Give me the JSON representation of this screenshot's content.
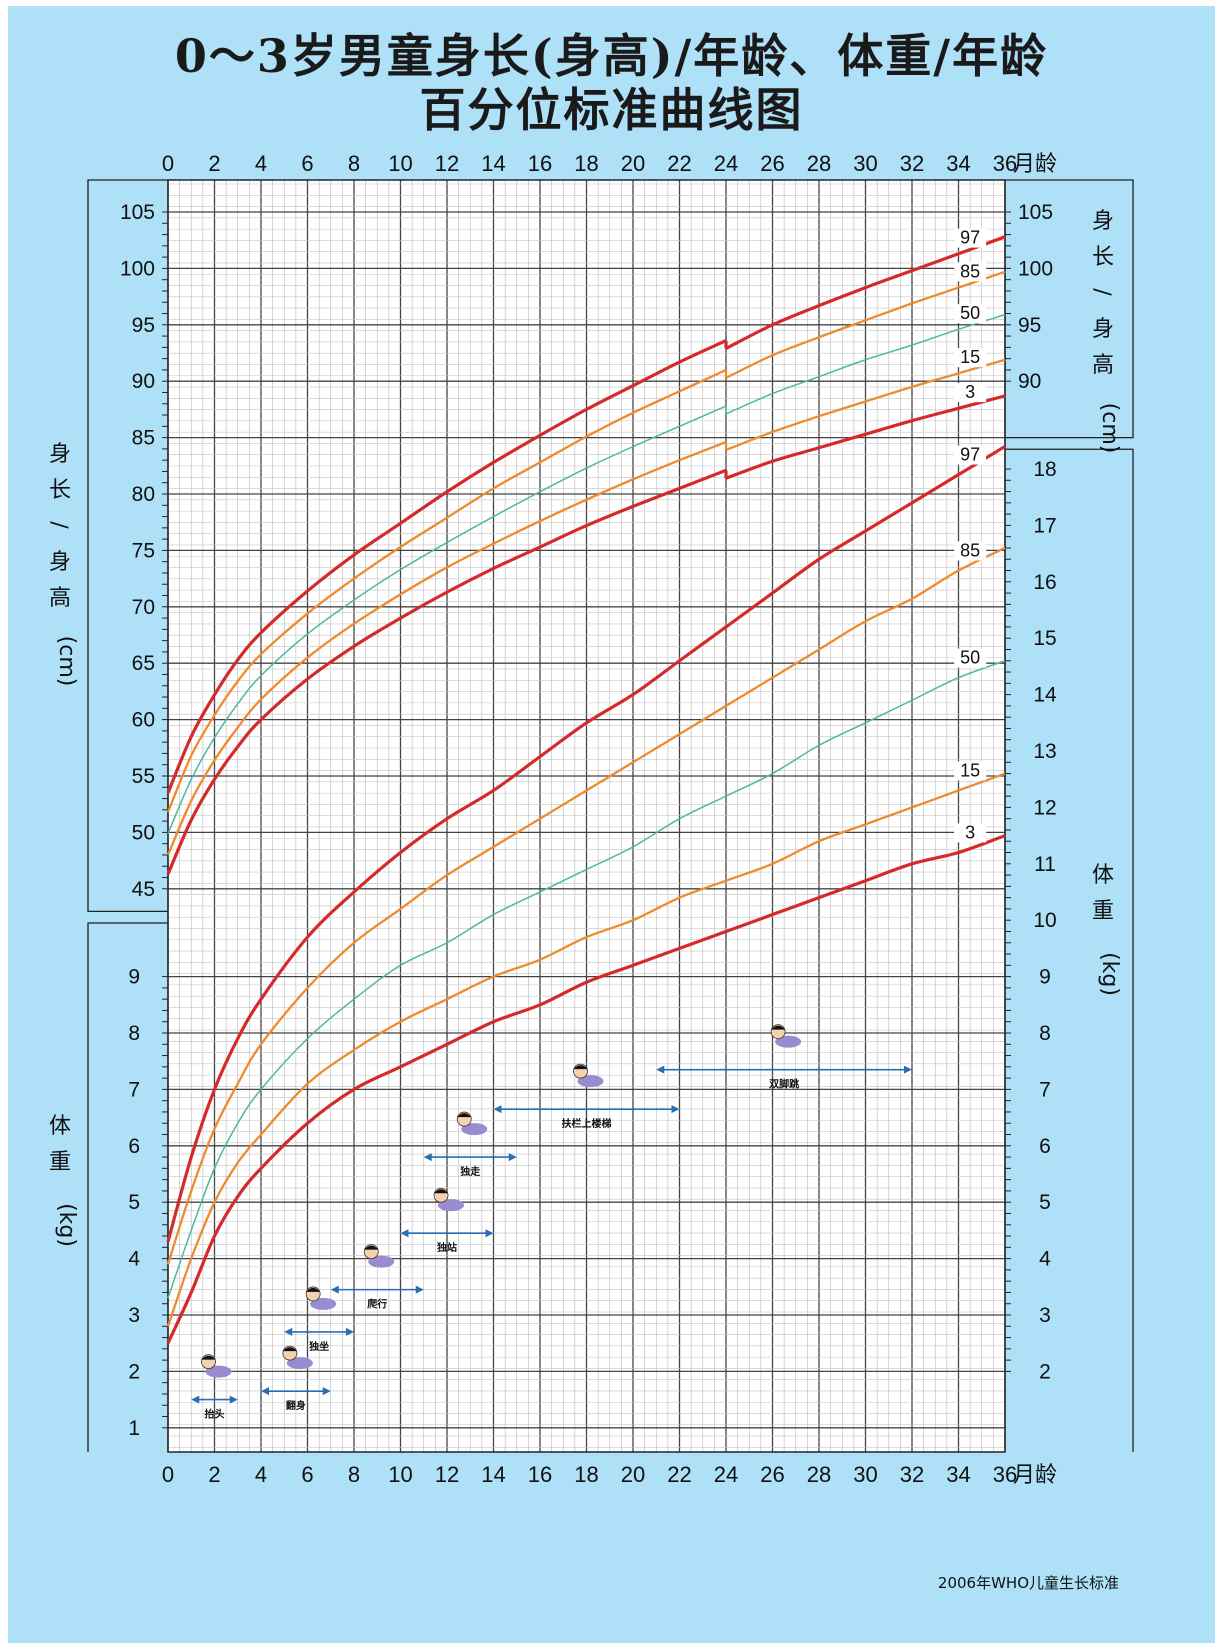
{
  "page": {
    "title_line1": "0～3岁男童身长(身高)/年龄、体重/年龄",
    "title_line2": "百分位标准曲线图",
    "source": "2006年WHO儿童生长标准"
  },
  "colors": {
    "background": "#aee0f7",
    "p97_p3": "#d42a2a",
    "p85_p15": "#ef8a2e",
    "p50": "#4bb8a2",
    "milestone_arrow": "#2a6db3"
  },
  "chart_data": {
    "type": "line",
    "x_unit_label": "月龄",
    "x_ticks": [
      0,
      2,
      4,
      6,
      8,
      10,
      12,
      14,
      16,
      18,
      20,
      22,
      24,
      26,
      28,
      30,
      32,
      34,
      36
    ],
    "length": {
      "axis_label": "身长/身高(cm)",
      "left_ticks": [
        45,
        50,
        55,
        60,
        65,
        70,
        75,
        80,
        85,
        90,
        95,
        100,
        105
      ],
      "right_ticks": [
        90,
        95,
        100,
        105
      ],
      "x": [
        0,
        1,
        2,
        3,
        4,
        6,
        8,
        10,
        12,
        14,
        16,
        18,
        20,
        22,
        24,
        26,
        28,
        30,
        32,
        34,
        36
      ],
      "series": [
        {
          "name": "97",
          "style": "red",
          "values": [
            53.5,
            58.5,
            62.2,
            65.3,
            67.7,
            71.4,
            74.6,
            77.4,
            80.2,
            82.8,
            85.2,
            87.5,
            89.6,
            91.7,
            93.6,
            95.0,
            96.7,
            98.3,
            99.8,
            101.3,
            102.8
          ]
        },
        {
          "name": "85",
          "style": "orange",
          "values": [
            51.8,
            56.8,
            60.4,
            63.4,
            65.8,
            69.4,
            72.5,
            75.3,
            77.9,
            80.5,
            82.8,
            85.1,
            87.2,
            89.1,
            91.0,
            92.3,
            93.9,
            95.4,
            96.9,
            98.3,
            99.7
          ]
        },
        {
          "name": "50",
          "style": "teal",
          "values": [
            49.9,
            54.7,
            58.4,
            61.4,
            63.9,
            67.6,
            70.6,
            73.3,
            75.7,
            78.0,
            80.2,
            82.3,
            84.2,
            86.0,
            87.8,
            88.9,
            90.4,
            91.9,
            93.2,
            94.6,
            95.9
          ]
        },
        {
          "name": "15",
          "style": "orange",
          "values": [
            48.0,
            52.8,
            56.4,
            59.3,
            61.8,
            65.5,
            68.5,
            71.1,
            73.5,
            75.6,
            77.6,
            79.5,
            81.3,
            83.0,
            84.6,
            85.5,
            86.9,
            88.2,
            89.5,
            90.7,
            91.9
          ]
        },
        {
          "name": "3",
          "style": "red",
          "values": [
            46.3,
            51.1,
            54.7,
            57.6,
            60.0,
            63.6,
            66.5,
            69.0,
            71.3,
            73.4,
            75.3,
            77.2,
            78.9,
            80.5,
            82.1,
            82.9,
            84.1,
            85.3,
            86.5,
            87.6,
            88.7
          ]
        }
      ]
    },
    "weight": {
      "axis_label": "体重(kg)",
      "left_ticks": [
        1,
        2,
        3,
        4,
        5,
        6,
        7,
        8,
        9
      ],
      "right_ticks": [
        2,
        3,
        4,
        5,
        6,
        7,
        8,
        9,
        10,
        11,
        12,
        13,
        14,
        15,
        16,
        17,
        18
      ],
      "x": [
        0,
        1,
        2,
        3,
        4,
        6,
        8,
        10,
        12,
        14,
        16,
        18,
        20,
        22,
        24,
        26,
        28,
        30,
        32,
        34,
        36
      ],
      "series": [
        {
          "name": "97",
          "style": "red",
          "values": [
            4.3,
            5.8,
            7.0,
            7.9,
            8.6,
            9.7,
            10.5,
            11.2,
            11.8,
            12.3,
            12.9,
            13.5,
            14.0,
            14.6,
            15.2,
            15.8,
            16.4,
            16.9,
            17.4,
            17.9,
            18.4
          ]
        },
        {
          "name": "85",
          "style": "orange",
          "values": [
            3.9,
            5.2,
            6.3,
            7.1,
            7.8,
            8.8,
            9.6,
            10.2,
            10.8,
            11.3,
            11.8,
            12.3,
            12.8,
            13.3,
            13.8,
            14.3,
            14.8,
            15.3,
            15.7,
            16.2,
            16.6
          ]
        },
        {
          "name": "50",
          "style": "teal",
          "values": [
            3.3,
            4.5,
            5.6,
            6.4,
            7.0,
            7.9,
            8.6,
            9.2,
            9.6,
            10.1,
            10.5,
            10.9,
            11.3,
            11.8,
            12.2,
            12.6,
            13.1,
            13.5,
            13.9,
            14.3,
            14.6
          ]
        },
        {
          "name": "15",
          "style": "orange",
          "values": [
            2.8,
            4.0,
            5.0,
            5.7,
            6.2,
            7.1,
            7.7,
            8.2,
            8.6,
            9.0,
            9.3,
            9.7,
            10.0,
            10.4,
            10.7,
            11.0,
            11.4,
            11.7,
            12.0,
            12.3,
            12.6
          ]
        },
        {
          "name": "3",
          "style": "red",
          "values": [
            2.5,
            3.4,
            4.4,
            5.1,
            5.6,
            6.4,
            7.0,
            7.4,
            7.8,
            8.2,
            8.5,
            8.9,
            9.2,
            9.5,
            9.8,
            10.1,
            10.4,
            10.7,
            11.0,
            11.2,
            11.5
          ]
        }
      ]
    },
    "milestones": [
      {
        "label": "抬头",
        "range_months": [
          1,
          3
        ],
        "weight_level": 1.5
      },
      {
        "label": "翻身",
        "range_months": [
          4,
          7
        ],
        "weight_level": 1.65
      },
      {
        "label": "独坐",
        "range_months": [
          5,
          8
        ],
        "weight_level": 2.7
      },
      {
        "label": "爬行",
        "range_months": [
          7,
          11
        ],
        "weight_level": 3.45
      },
      {
        "label": "独站",
        "range_months": [
          10,
          14
        ],
        "weight_level": 4.45
      },
      {
        "label": "独走",
        "range_months": [
          11,
          15
        ],
        "weight_level": 5.8
      },
      {
        "label": "扶栏上楼梯",
        "range_months": [
          14,
          22
        ],
        "weight_level": 6.65
      },
      {
        "label": "双脚跳",
        "range_months": [
          21,
          32
        ],
        "weight_level": 7.35
      }
    ]
  }
}
